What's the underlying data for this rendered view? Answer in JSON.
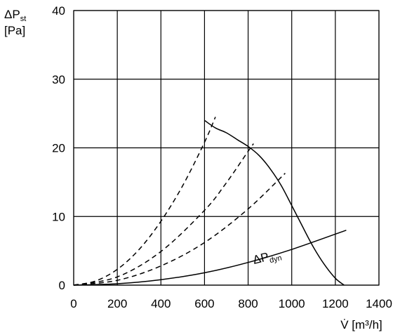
{
  "chart_data": {
    "type": "line",
    "xlabel": "V̇ [m³/h]",
    "ylabel": {
      "symbol": "ΔP",
      "subscript": "st",
      "unit": "[Pa]"
    },
    "xlim": [
      0,
      1400
    ],
    "ylim": [
      0,
      40
    ],
    "x_ticks": [
      0,
      200,
      400,
      600,
      800,
      1000,
      1200,
      1400
    ],
    "y_ticks": [
      0,
      10,
      20,
      30,
      40
    ],
    "grid": true,
    "series": [
      {
        "name": "fan-curve",
        "style": "solid",
        "points": [
          [
            600,
            24.0
          ],
          [
            650,
            22.9
          ],
          [
            700,
            22.2
          ],
          [
            750,
            21.2
          ],
          [
            800,
            20.2
          ],
          [
            850,
            18.9
          ],
          [
            900,
            17.0
          ],
          [
            950,
            14.6
          ],
          [
            1000,
            11.6
          ],
          [
            1050,
            8.5
          ],
          [
            1100,
            5.5
          ],
          [
            1150,
            3.0
          ],
          [
            1200,
            1.0
          ],
          [
            1240,
            0
          ]
        ]
      },
      {
        "name": "ΔPdyn",
        "label": {
          "symbol": "ΔP",
          "subscript": "dyn",
          "at": [
            820,
            3.2
          ]
        },
        "style": "solid",
        "points": [
          [
            0,
            0
          ],
          [
            200,
            0.2
          ],
          [
            400,
            0.8
          ],
          [
            600,
            1.8
          ],
          [
            800,
            3.3
          ],
          [
            1000,
            5.2
          ],
          [
            1250,
            8.0
          ]
        ]
      },
      {
        "name": "system-curve-1",
        "style": "dashed",
        "points": [
          [
            0,
            0
          ],
          [
            100,
            0.6
          ],
          [
            200,
            2.3
          ],
          [
            300,
            5.2
          ],
          [
            400,
            9.3
          ],
          [
            500,
            14.5
          ],
          [
            600,
            20.8
          ],
          [
            650,
            24.5
          ]
        ]
      },
      {
        "name": "system-curve-2",
        "style": "dashed",
        "points": [
          [
            0,
            0
          ],
          [
            200,
            1.2
          ],
          [
            400,
            4.9
          ],
          [
            600,
            10.9
          ],
          [
            700,
            14.9
          ],
          [
            800,
            19.5
          ],
          [
            825,
            20.6
          ]
        ]
      },
      {
        "name": "system-curve-3",
        "style": "dashed",
        "points": [
          [
            0,
            0
          ],
          [
            200,
            0.7
          ],
          [
            400,
            2.8
          ],
          [
            600,
            6.2
          ],
          [
            800,
            11.1
          ],
          [
            970,
            16.3
          ]
        ]
      }
    ]
  }
}
